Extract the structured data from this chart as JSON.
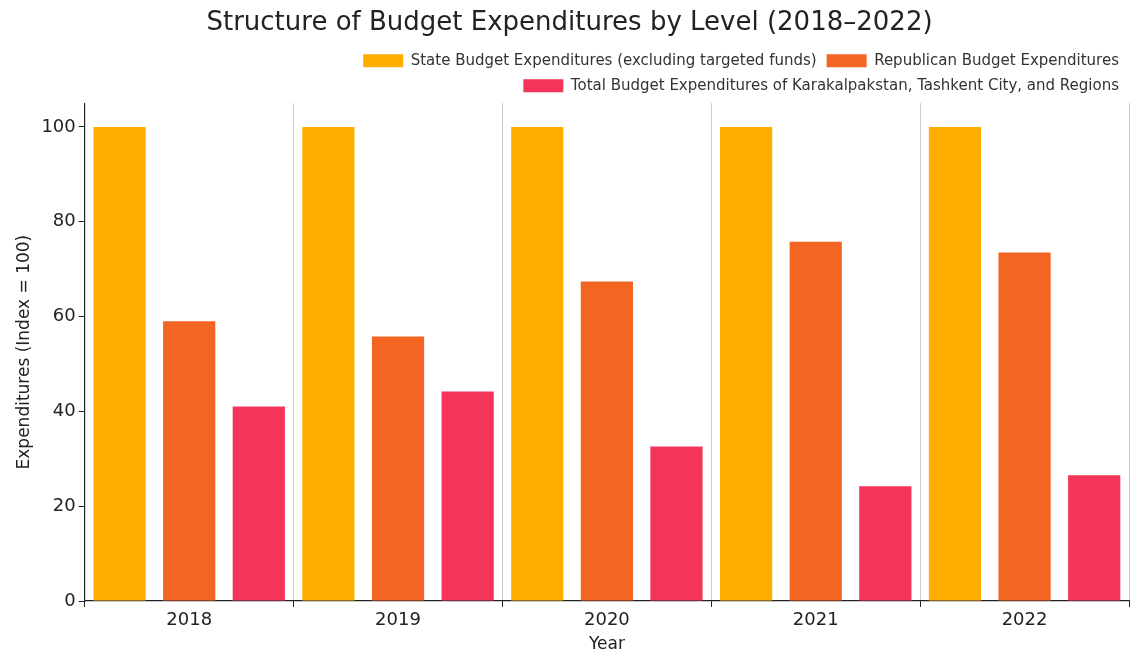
{
  "chart_data": {
    "type": "bar",
    "title": "Structure of Budget Expenditures by Level (2018–2022)",
    "xlabel": "Year",
    "ylabel": "Expenditures (Index = 100)",
    "categories": [
      "2018",
      "2019",
      "2020",
      "2021",
      "2022"
    ],
    "series": [
      {
        "name": "State Budget Expenditures (excluding targeted funds)",
        "color": "#ffae00",
        "values": [
          100,
          100,
          100,
          100,
          100
        ]
      },
      {
        "name": "Republican Budget Expenditures",
        "color": "#f26522",
        "values": [
          59.0,
          55.8,
          67.4,
          75.8,
          73.5
        ]
      },
      {
        "name": "Total Budget Expenditures of Karakalpakstan, Tashkent City, and Regions",
        "color": "#f43559",
        "values": [
          41.0,
          44.2,
          32.6,
          24.2,
          26.5
        ]
      }
    ],
    "ylim": [
      0,
      105
    ],
    "yticks": [
      0,
      20,
      40,
      60,
      80,
      100
    ],
    "grid": "x",
    "legend": "top right"
  }
}
